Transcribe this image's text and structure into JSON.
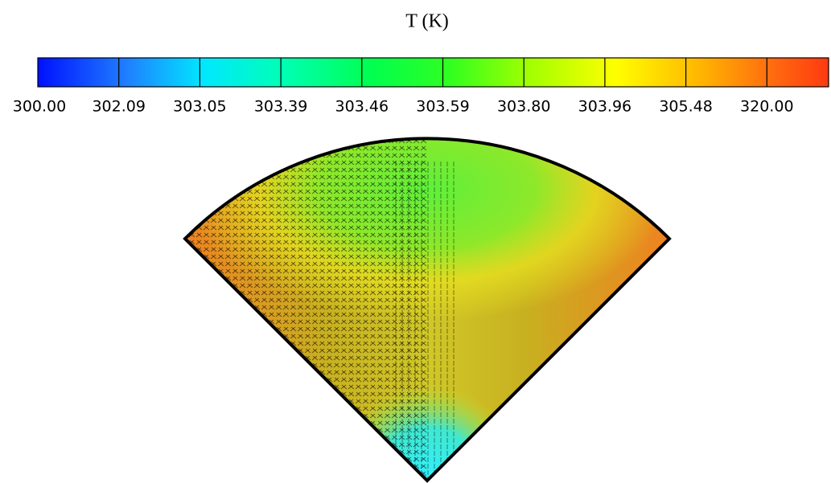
{
  "chart_data": {
    "type": "contour",
    "title": "T (K)",
    "colorbar_ticks": [
      {
        "value": 300.0,
        "label": "300.00"
      },
      {
        "value": 302.09,
        "label": "302.09"
      },
      {
        "value": 303.05,
        "label": "303.05"
      },
      {
        "value": 303.39,
        "label": "303.39"
      },
      {
        "value": 303.46,
        "label": "303.46"
      },
      {
        "value": 303.59,
        "label": "303.59"
      },
      {
        "value": 303.8,
        "label": "303.80"
      },
      {
        "value": 303.96,
        "label": "303.96"
      },
      {
        "value": 305.48,
        "label": "305.48"
      },
      {
        "value": 320.0,
        "label": "320.00"
      }
    ]
  }
}
